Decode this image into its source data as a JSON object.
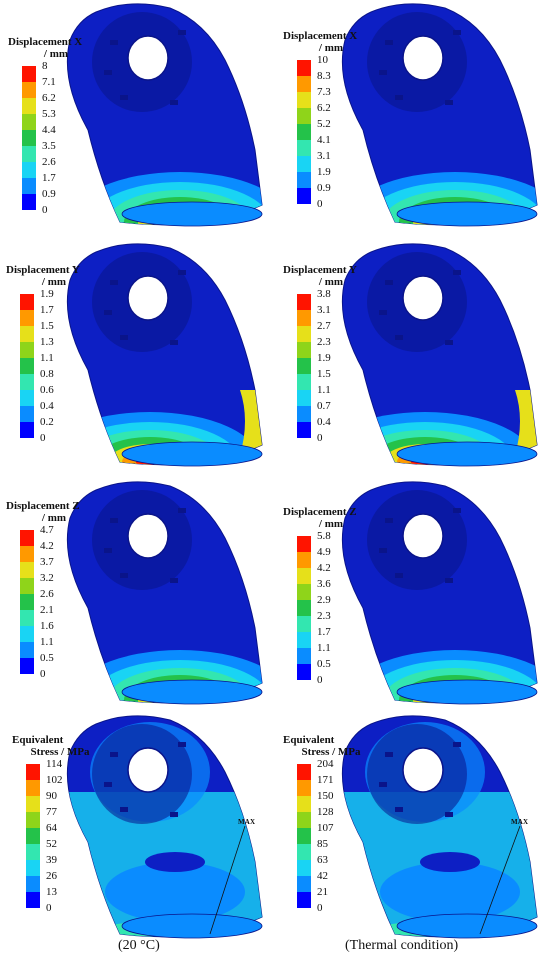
{
  "colors": {
    "scale": [
      "#0000ff",
      "#0a8cff",
      "#19d4f4",
      "#33e6b0",
      "#24c24a",
      "#8fd41a",
      "#e6e01a",
      "#ff9900",
      "#ff1400"
    ],
    "model_base": "#0d1fc4",
    "model_dark": "#0a148a"
  },
  "panels": [
    {
      "id": "x-20",
      "legend_title_1": "Displacement X",
      "legend_title_2": "/ mm",
      "ticks": [
        "8",
        "7.1",
        "6.2",
        "5.3",
        "4.4",
        "3.5",
        "2.6",
        "1.7",
        "0.9",
        "0"
      ]
    },
    {
      "id": "x-thermal",
      "legend_title_1": "Displacement X",
      "legend_title_2": "/ mm",
      "ticks": [
        "10",
        "8.3",
        "7.3",
        "6.2",
        "5.2",
        "4.1",
        "3.1",
        "1.9",
        "0.9",
        "0"
      ]
    },
    {
      "id": "y-20",
      "legend_title_1": "Displacement Y",
      "legend_title_2": "/ mm",
      "ticks": [
        "1.9",
        "1.7",
        "1.5",
        "1.3",
        "1.1",
        "0.8",
        "0.6",
        "0.4",
        "0.2",
        "0"
      ]
    },
    {
      "id": "y-thermal",
      "legend_title_1": "Displacement Y",
      "legend_title_2": "/ mm",
      "ticks": [
        "3.8",
        "3.1",
        "2.7",
        "2.3",
        "1.9",
        "1.5",
        "1.1",
        "0.7",
        "0.4",
        "0"
      ]
    },
    {
      "id": "z-20",
      "legend_title_1": "Displacement Z",
      "legend_title_2": "/ mm",
      "ticks": [
        "4.7",
        "4.2",
        "3.7",
        "3.2",
        "2.6",
        "2.1",
        "1.6",
        "1.1",
        "0.5",
        "0"
      ]
    },
    {
      "id": "z-thermal",
      "legend_title_1": "Displacement Z",
      "legend_title_2": "/ mm",
      "ticks": [
        "5.8",
        "4.9",
        "4.2",
        "3.6",
        "2.9",
        "2.3",
        "1.7",
        "1.1",
        "0.5",
        "0"
      ]
    },
    {
      "id": "s-20",
      "legend_title_1": "Equivalent",
      "legend_title_2": "Stress / MPa",
      "ticks": [
        "114",
        "102",
        "90",
        "77",
        "64",
        "52",
        "39",
        "26",
        "13",
        "0"
      ],
      "max_label": "MAX"
    },
    {
      "id": "s-thermal",
      "legend_title_1": "Equivalent",
      "legend_title_2": "Stress / MPa",
      "ticks": [
        "204",
        "171",
        "150",
        "128",
        "107",
        "85",
        "63",
        "42",
        "21",
        "0"
      ],
      "max_label": "MAX"
    }
  ],
  "captions": {
    "left": "(20 °C)",
    "right": "(Thermal condition)"
  }
}
